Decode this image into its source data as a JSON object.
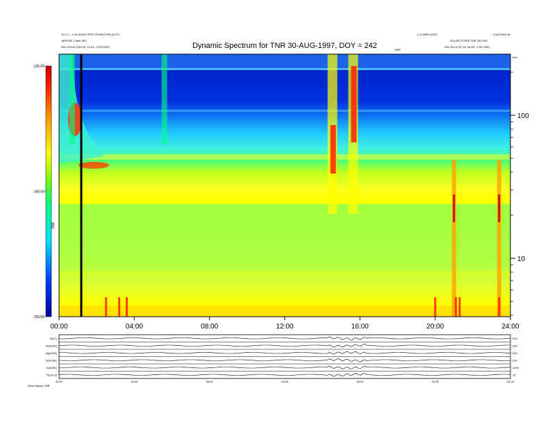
{
  "chart_data": {
    "type": "heatmap",
    "title": "Dynamic Spectrum for TNR 30-AUG-1997, DOY = 242",
    "x_ticks": [
      "00:00",
      "04:00",
      "08:00",
      "12:00",
      "16:00",
      "20:00",
      "24:00"
    ],
    "xlim_hours": [
      0,
      24
    ],
    "y_scale": "log",
    "y_ticks": [
      "100",
      "10"
    ],
    "y_tick_values": [
      100,
      10
    ],
    "colorbar": {
      "ticks": [
        "-125.00",
        "-140.00",
        "-155.00"
      ],
      "tick_values": [
        -125,
        -140,
        -155
      ],
      "range": [
        -155,
        -125
      ],
      "label": "TNR",
      "colors": [
        "#0000a0",
        "#0040ff",
        "#00e0ff",
        "#00ff80",
        "#40ff00",
        "#ffff00",
        "#ffa000",
        "#ff2000",
        "#c00000"
      ]
    },
    "marker_time_hours": 1.2,
    "bands": [
      {
        "name": "low-noise floor",
        "level": "green-yellow"
      },
      {
        "name": "upper quiet region",
        "level": "blue"
      }
    ],
    "bursts_hours": [
      0.7,
      5.6,
      14.5,
      15.6,
      21.0,
      23.4
    ],
    "header": {
      "left_line1": "11 0.0 – 1.00 GOOD SPECTRUM (TNR) AUTO",
      "left_line2": "HEPHAS 3  alter 002",
      "left_line3": "Res   104.40 (163.29, 15.04, -3.99 GSE)",
      "right_line1": "1.10 WED  DATE",
      "right_line2": "SOLAR STORE  TNR 230-205",
      "right_line3": "Res   38.13 (97.18, 18.69, -2.69 GSE)",
      "right_corner": "LOG(TNR) alt",
      "center_small": "SWE",
      "axis_unit": "kHz"
    },
    "mini_panels": {
      "labels": [
        "B(nT)",
        "Bx(GSE)",
        "By(GSE)",
        "Bz(GSE)",
        "Vx(GSE)",
        "N(cm-3)"
      ],
      "right_labels": [
        "200",
        "200",
        "200",
        "200",
        "1000",
        "10"
      ],
      "x_ticks": [
        "00:00",
        "04:00",
        "08:00",
        "12:00",
        "16:00",
        "20:00",
        "24:00"
      ],
      "footer": "Wind Waves TNR"
    }
  }
}
